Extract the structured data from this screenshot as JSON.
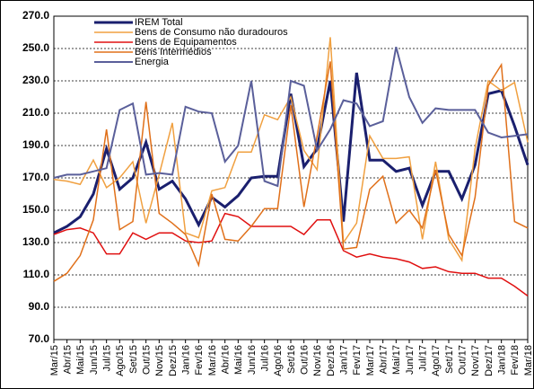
{
  "chart_data": {
    "type": "line",
    "categories": [
      "Mar/15",
      "Abr/15",
      "Mai/15",
      "Jun/15",
      "Jul/15",
      "Ago/15",
      "Set/15",
      "Out/15",
      "Nov/15",
      "Dez/15",
      "Jan/16",
      "Fev/16",
      "Mar/16",
      "Abr/16",
      "Mai/16",
      "Jun/16",
      "Jul/16",
      "Ago/16",
      "Set/16",
      "Out/16",
      "Nov/16",
      "Dez/16",
      "Jan/17",
      "Fev/17",
      "Mar/17",
      "Abr/17",
      "Mai/17",
      "Jun/17",
      "Jul/17",
      "Ago/17",
      "Set/17",
      "Out/17",
      "Nov/17",
      "Dez/17",
      "Jan/18",
      "Fev/18",
      "Mar/18"
    ],
    "series": [
      {
        "name": "IREM Total",
        "color": "#1a1f6e",
        "width": 3,
        "values": [
          136,
          140,
          146,
          160,
          188,
          163,
          170,
          192,
          163,
          168,
          157,
          141,
          158,
          152,
          159,
          170,
          171,
          171,
          222,
          177,
          188,
          230,
          143,
          235,
          181,
          181,
          174,
          176,
          153,
          174,
          174,
          157,
          178,
          222,
          224,
          202,
          178
        ]
      },
      {
        "name": "Bens de Consumo não duradouros",
        "color": "#f0a040",
        "width": 1.5,
        "values": [
          169,
          168,
          166,
          181,
          164,
          170,
          180,
          142,
          172,
          204,
          136,
          133,
          162,
          164,
          186,
          186,
          209,
          206,
          220,
          187,
          175,
          257,
          130,
          142,
          196,
          182,
          182,
          183,
          132,
          180,
          132,
          119,
          188,
          230,
          224,
          229,
          192
        ]
      },
      {
        "name": "Bens de Equipamentos",
        "color": "#e01010",
        "width": 1.5,
        "values": [
          135,
          138,
          139,
          136,
          123,
          123,
          136,
          132,
          136,
          136,
          131,
          130,
          131,
          148,
          146,
          140,
          140,
          140,
          140,
          135,
          144,
          144,
          125,
          121,
          123,
          121,
          120,
          118,
          114,
          115,
          112,
          111,
          111,
          108,
          108,
          103,
          97
        ]
      },
      {
        "name": "Bens Intermédios",
        "color": "#e0701a",
        "width": 1.5,
        "values": [
          106,
          111,
          122,
          144,
          200,
          138,
          143,
          217,
          148,
          142,
          135,
          116,
          160,
          132,
          131,
          140,
          151,
          151,
          215,
          152,
          196,
          242,
          126,
          127,
          163,
          171,
          142,
          150,
          139,
          175,
          135,
          122,
          158,
          227,
          240,
          143,
          139
        ]
      },
      {
        "name": "Energia",
        "color": "#5a5f9a",
        "width": 2,
        "values": [
          170,
          172,
          172,
          174,
          176,
          212,
          216,
          172,
          173,
          172,
          214,
          211,
          210,
          180,
          190,
          230,
          168,
          165,
          230,
          227,
          187,
          200,
          218,
          216,
          202,
          205,
          251,
          220,
          204,
          213,
          212,
          212,
          212,
          198,
          195,
          196,
          197
        ]
      }
    ],
    "ylim": [
      70,
      270
    ],
    "yticks": [
      {
        "value": 70,
        "label": "70.0"
      },
      {
        "value": 90,
        "label": "90.0"
      },
      {
        "value": 110,
        "label": "110.0"
      },
      {
        "value": 130,
        "label": "130.0"
      },
      {
        "value": 150,
        "label": "150.0"
      },
      {
        "value": 170,
        "label": "170.0"
      },
      {
        "value": 190,
        "label": "190.0"
      },
      {
        "value": 210,
        "label": "210.0"
      },
      {
        "value": 230,
        "label": "230.0"
      },
      {
        "value": 250,
        "label": "250.0"
      },
      {
        "value": 270,
        "label": "270.0"
      }
    ],
    "grid": true
  }
}
